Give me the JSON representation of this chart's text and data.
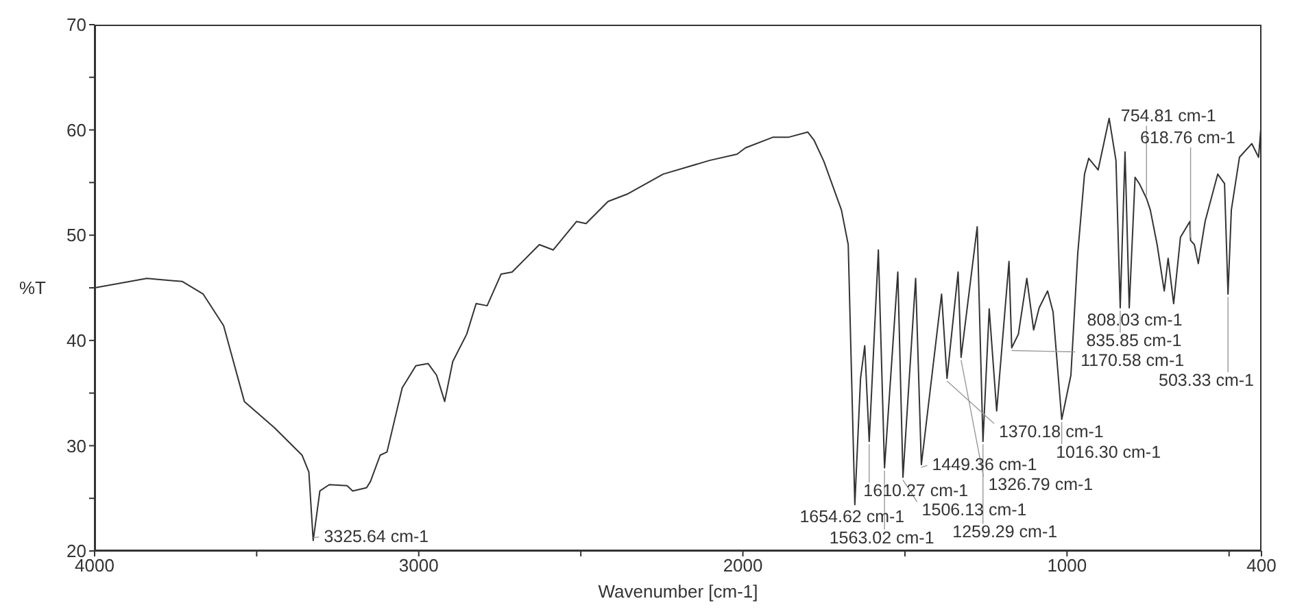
{
  "chart_data": {
    "type": "line",
    "xlabel": "Wavenumber [cm-1]",
    "ylabel": "%T",
    "xlim": [
      4000,
      400
    ],
    "ylim": [
      20,
      70
    ],
    "xticks": [
      4000,
      {
        "value": 3500,
        "label": null
      },
      3000,
      {
        "value": 2500,
        "label": null
      },
      2000,
      {
        "value": 1500,
        "label": null
      },
      1000,
      {
        "value": 500,
        "label": null
      },
      400
    ],
    "yticks": [
      20,
      {
        "value": 25,
        "label": null
      },
      30,
      {
        "value": 35,
        "label": null
      },
      40,
      {
        "value": 45,
        "label": null
      },
      50,
      {
        "value": 55,
        "label": null
      },
      60,
      {
        "value": 65,
        "label": null
      },
      70
    ],
    "marker": "none",
    "line_style": "solid",
    "series": [
      {
        "color": "#333333",
        "x": [
          4000,
          3839,
          3729,
          3665,
          3602,
          3538,
          3445,
          3360,
          3339,
          3325.64,
          3305,
          3276,
          3221,
          3204,
          3161,
          3149,
          3119,
          3098,
          3051,
          3009,
          2971,
          2945,
          2920,
          2895,
          2852,
          2823,
          2789,
          2746,
          2712,
          2628,
          2585,
          2513,
          2484,
          2416,
          2357,
          2246,
          2103,
          2018,
          1992,
          1908,
          1860,
          1800,
          1780,
          1750,
          1696,
          1675,
          1654.62,
          1637,
          1624,
          1610.27,
          1582,
          1563.02,
          1522,
          1506.13,
          1467,
          1449.36,
          1387,
          1370.18,
          1336,
          1326.79,
          1277,
          1259.29,
          1240,
          1217,
          1179,
          1170.58,
          1150,
          1124,
          1103,
          1086,
          1060,
          1043,
          1016.3,
          988,
          967,
          946,
          933,
          904,
          870,
          849,
          835.85,
          821,
          808.03,
          790,
          777,
          754.81,
          743,
          722,
          700,
          688,
          671,
          650,
          621,
          618.76,
          607,
          595,
          574,
          535,
          514,
          503.33,
          493,
          468,
          430,
          409,
          400
        ],
        "values": [
          45.0,
          45.9,
          45.6,
          44.4,
          41.4,
          34.2,
          31.7,
          29.1,
          27.5,
          21.0,
          25.7,
          26.3,
          26.2,
          25.7,
          26.0,
          26.6,
          29.1,
          29.4,
          35.5,
          37.6,
          37.8,
          36.7,
          34.2,
          38.0,
          40.6,
          43.5,
          43.3,
          46.3,
          46.5,
          49.1,
          48.6,
          51.3,
          51.1,
          53.2,
          53.9,
          55.8,
          57.1,
          57.7,
          58.3,
          59.3,
          59.3,
          59.8,
          59.0,
          57.0,
          52.4,
          49.1,
          24.4,
          36.4,
          39.5,
          30.4,
          48.6,
          27.9,
          46.5,
          27.0,
          45.9,
          28.2,
          44.4,
          36.4,
          46.5,
          38.4,
          50.8,
          30.4,
          43.0,
          33.3,
          47.5,
          39.3,
          40.6,
          45.9,
          41.0,
          43.1,
          44.7,
          42.7,
          32.5,
          36.7,
          48.2,
          55.8,
          57.3,
          56.2,
          61.1,
          57.1,
          43.1,
          57.9,
          43.1,
          55.5,
          54.9,
          53.5,
          52.4,
          49.1,
          44.7,
          47.8,
          43.5,
          49.8,
          51.3,
          49.5,
          49.1,
          47.3,
          51.3,
          55.8,
          54.9,
          44.4,
          52.4,
          57.4,
          58.7,
          57.4,
          60.9
        ]
      }
    ],
    "annotations": [
      {
        "text": "3325.64 cm-1",
        "x": 3325.64,
        "y": 21.0
      },
      {
        "text": "1654.62 cm-1",
        "x": 1654.62,
        "y": 24.4
      },
      {
        "text": "1610.27 cm-1",
        "x": 1610.27,
        "y": 30.4
      },
      {
        "text": "1563.02 cm-1",
        "x": 1563.02,
        "y": 27.9
      },
      {
        "text": "1449.36 cm-1",
        "x": 1449.36,
        "y": 28.2
      },
      {
        "text": "1506.13 cm-1",
        "x": 1506.13,
        "y": 27.0
      },
      {
        "text": "1370.18 cm-1",
        "x": 1370.18,
        "y": 36.4
      },
      {
        "text": "1326.79 cm-1",
        "x": 1326.79,
        "y": 38.4
      },
      {
        "text": "1259.29 cm-1",
        "x": 1259.29,
        "y": 30.4
      },
      {
        "text": "1170.58 cm-1",
        "x": 1170.58,
        "y": 39.3
      },
      {
        "text": "1016.30 cm-1",
        "x": 1016.3,
        "y": 32.5
      },
      {
        "text": "808.03 cm-1",
        "x": 808.03,
        "y": 43.1
      },
      {
        "text": "618.76 cm-1",
        "x": 618.76,
        "y": 49.5
      },
      {
        "text": "835.85 cm-1",
        "x": 835.85,
        "y": 43.1
      },
      {
        "text": "754.81 cm-1",
        "x": 754.81,
        "y": 53.5
      },
      {
        "text": "503.33 cm-1",
        "x": 503.33,
        "y": 44.4
      }
    ]
  }
}
